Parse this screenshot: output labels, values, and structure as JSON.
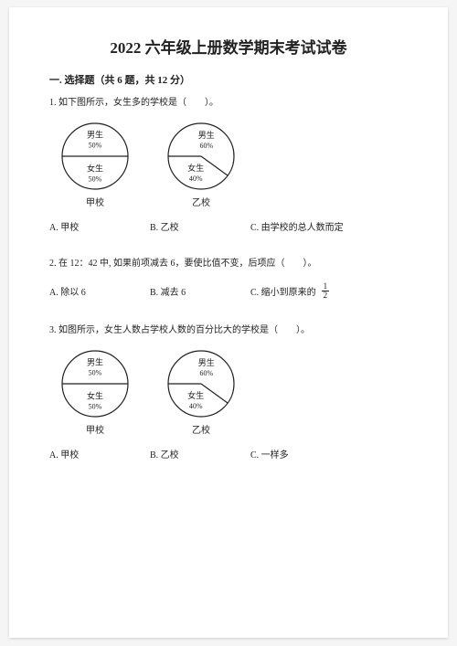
{
  "title": "2022 六年级上册数学期末考试试卷",
  "section": "一. 选择题（共 6 题，共 12 分）",
  "q1": {
    "text": "1. 如下图所示，女生多的学校是（　　）。",
    "optA": "A. 甲校",
    "optB": "B. 乙校",
    "optC": "C. 由学校的总人数而定"
  },
  "q2": {
    "text": "2. 在 12：42 中, 如果前项减去 6，要使比值不变，后项应（　　）。",
    "optA": "A. 除以 6",
    "optB": "B. 减去 6",
    "optC": "C. 缩小到原来的",
    "frac_num": "1",
    "frac_den": "2"
  },
  "q3": {
    "text": "3. 如图所示，女生人数占学校人数的百分比大的学校是（　　）。",
    "optA": "A. 甲校",
    "optB": "B. 乙校",
    "optC": "C. 一样多"
  },
  "pieA": {
    "type": "pie",
    "radius": 36,
    "stroke": "#222222",
    "stroke_width": 1.2,
    "bg": "#ffffff",
    "slices": [
      {
        "label": "女生",
        "pct": "50%",
        "angle_start": 90,
        "angle_end": 270
      },
      {
        "label": "男生",
        "pct": "50%",
        "angle_start": 270,
        "angle_end": 450
      }
    ],
    "label_font": 9,
    "pct_font": 8,
    "school": "甲校"
  },
  "pieB": {
    "type": "pie",
    "radius": 36,
    "stroke": "#222222",
    "stroke_width": 1.2,
    "bg": "#ffffff",
    "slices": [
      {
        "label": "女生",
        "pct": "40%",
        "angle_start": 126,
        "angle_end": 270
      },
      {
        "label": "男生",
        "pct": "60%",
        "angle_start": 270,
        "angle_end": 486
      }
    ],
    "label_font": 9,
    "pct_font": 8,
    "school": "乙校"
  }
}
